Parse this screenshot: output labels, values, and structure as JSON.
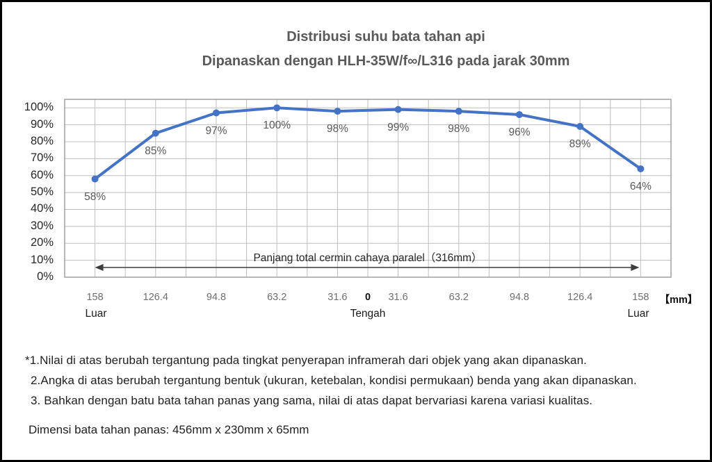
{
  "title": {
    "line1": "Distribusi suhu bata tahan api",
    "line2": "Dipanaskan dengan HLH-35W/f∞/L316 pada jarak 30mm"
  },
  "chart_data": {
    "type": "line",
    "title": "Distribusi suhu bata tahan api",
    "subtitle": "Dipanaskan dengan HLH-35W/f∞/L316 pada jarak 30mm",
    "x_tick_labels": [
      "158",
      "126.4",
      "94.8",
      "63.2",
      "31.6",
      "31.6",
      "63.2",
      "94.8",
      "126.4",
      "158"
    ],
    "center_tick_label": "0",
    "unit_label": "【mm】",
    "values": [
      58,
      85,
      97,
      100,
      98,
      99,
      98,
      96,
      89,
      64
    ],
    "data_labels": [
      "58%",
      "85%",
      "97%",
      "100%",
      "98%",
      "99%",
      "98%",
      "96%",
      "89%",
      "64%"
    ],
    "y_tick_labels": [
      "0%",
      "10%",
      "20%",
      "30%",
      "40%",
      "50%",
      "60%",
      "70%",
      "80%",
      "90%",
      "100%"
    ],
    "ylim": [
      0,
      105
    ],
    "grid": true,
    "legend_position": "none",
    "line_color": "#4472c4",
    "grid_color": "#bdbdbd",
    "plot_border_color": "#9a9a9a",
    "arrow_color": "#3d3d3d",
    "annotations": {
      "left": "Luar",
      "center": "Tengah",
      "right": "Luar",
      "span_label": "Panjang total cermin cahaya paralel（316mm）"
    }
  },
  "footnotes": [
    "*1.Nilai di atas berubah tergantung pada tingkat penyerapan inframerah dari objek yang akan dipanaskan.",
    "2.Angka di atas berubah tergantung bentuk (ukuran, ketebalan, kondisi permukaan) benda yang akan dipanaskan.",
    "3. Bahkan dengan batu bata tahan panas yang sama, nilai di atas dapat bervariasi karena variasi kualitas."
  ],
  "dimension_note": "Dimensi bata tahan panas: 456mm x 230mm x 65mm"
}
